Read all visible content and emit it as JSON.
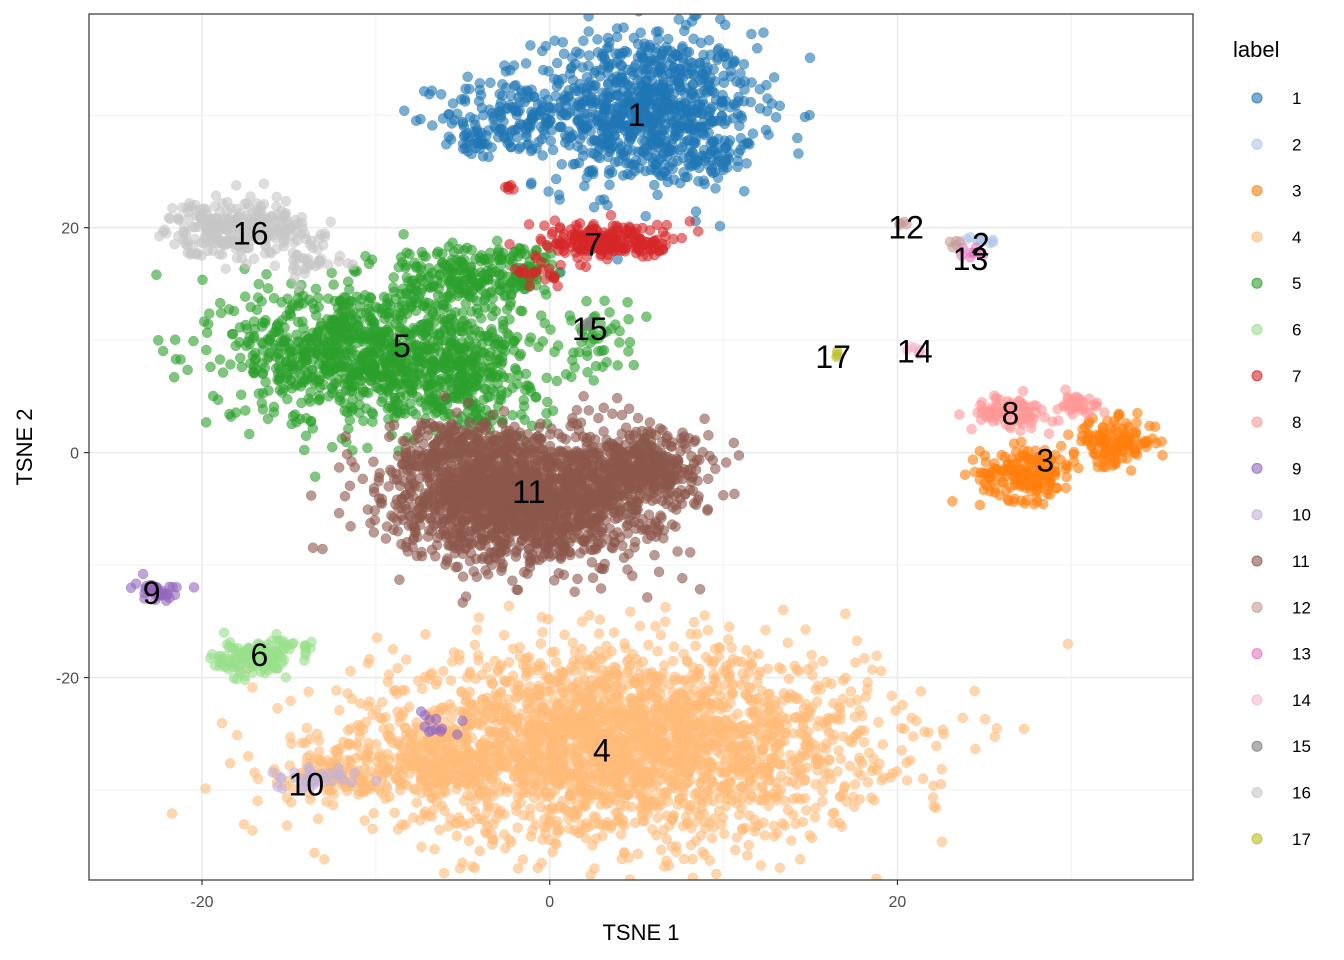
{
  "chart_data": {
    "type": "scatter",
    "title": "",
    "xlabel": "TSNE 1",
    "ylabel": "TSNE 2",
    "xlim": [
      -26.5,
      37
    ],
    "ylim": [
      -38,
      39
    ],
    "xticks": [
      -20,
      0,
      20
    ],
    "yticks": [
      -20,
      0,
      20
    ],
    "grid": true,
    "legend": {
      "title": "label",
      "position": "right"
    },
    "clusters": [
      {
        "label": "1",
        "color": "#1f77b4",
        "label_pos": [
          5,
          30
        ],
        "blobs": [
          [
            5.5,
            30.5,
            4.2,
            4.6,
            900
          ],
          [
            -2.5,
            30,
            2.5,
            2.2,
            120
          ],
          [
            -4.5,
            27.5,
            1.2,
            1.0,
            30
          ],
          [
            9.5,
            26.5,
            1.5,
            1.2,
            40
          ]
        ]
      },
      {
        "label": "2",
        "color": "#aec7e8",
        "label_pos": [
          24.8,
          18.5
        ],
        "blobs": [
          [
            24.8,
            18.8,
            0.7,
            0.3,
            10
          ]
        ]
      },
      {
        "label": "3",
        "color": "#ff7f0e",
        "label_pos": [
          28.5,
          -0.7
        ],
        "blobs": [
          [
            27.5,
            -1.8,
            1.8,
            1.6,
            180
          ],
          [
            32.5,
            1.0,
            1.6,
            1.3,
            130
          ]
        ]
      },
      {
        "label": "4",
        "color": "#ffbb78",
        "label_pos": [
          3,
          -26.5
        ],
        "blobs": [
          [
            4,
            -26,
            9.5,
            5.5,
            2600
          ],
          [
            -8,
            -28,
            4.5,
            2.0,
            250
          ],
          [
            -13,
            -29,
            1.5,
            0.7,
            30
          ]
        ]
      },
      {
        "label": "5",
        "color": "#2ca02c",
        "label_pos": [
          -8.5,
          9.5
        ],
        "blobs": [
          [
            -11,
            9,
            4.8,
            4.2,
            900
          ],
          [
            -5,
            7,
            3.0,
            3.5,
            300
          ],
          [
            -5,
            15.5,
            3.0,
            2.2,
            200
          ],
          [
            -1.5,
            16,
            1.5,
            1.4,
            60
          ],
          [
            2.5,
            10,
            2.0,
            2.5,
            50
          ]
        ]
      },
      {
        "label": "6",
        "color": "#98df8a",
        "label_pos": [
          -16.7,
          -18
        ],
        "blobs": [
          [
            -17.2,
            -18.3,
            1.4,
            1.2,
            120
          ],
          [
            -14.5,
            -17.5,
            0.9,
            0.6,
            15
          ]
        ]
      },
      {
        "label": "7",
        "color": "#d62728",
        "label_pos": [
          2.5,
          18.5
        ],
        "blobs": [
          [
            3.5,
            18.8,
            2.6,
            1.1,
            220
          ],
          [
            -0.5,
            15.8,
            1.0,
            0.6,
            20
          ],
          [
            -2.3,
            23.5,
            0.3,
            0.2,
            6
          ]
        ]
      },
      {
        "label": "8",
        "color": "#ff9896",
        "label_pos": [
          26.5,
          3.5
        ],
        "blobs": [
          [
            26.5,
            3.5,
            1.5,
            1.0,
            90
          ],
          [
            30.3,
            4.3,
            1.0,
            0.6,
            30
          ]
        ]
      },
      {
        "label": "9",
        "color": "#9467bd",
        "label_pos": [
          -22.9,
          -12.5
        ],
        "blobs": [
          [
            -22.6,
            -12.3,
            0.9,
            0.6,
            35
          ],
          [
            -6.5,
            -23.8,
            0.6,
            0.8,
            12
          ]
        ]
      },
      {
        "label": "10",
        "color": "#c5b0d5",
        "label_pos": [
          -14,
          -29.5
        ],
        "blobs": [
          [
            -13.5,
            -29,
            1.5,
            0.7,
            35
          ]
        ]
      },
      {
        "label": "11",
        "color": "#8c564b",
        "label_pos": [
          -1.2,
          -3.5
        ],
        "blobs": [
          [
            -1.5,
            -4,
            5.0,
            3.8,
            1800
          ],
          [
            5.8,
            -1.5,
            2.2,
            2.2,
            300
          ],
          [
            -5.5,
            0.5,
            2.0,
            1.5,
            120
          ]
        ]
      },
      {
        "label": "12",
        "color": "#c49c94",
        "label_pos": [
          20.5,
          20
        ],
        "blobs": [
          [
            20.4,
            20.3,
            0.3,
            0.3,
            4
          ],
          [
            23.2,
            18.5,
            0.4,
            0.4,
            5
          ]
        ]
      },
      {
        "label": "13",
        "color": "#e377c2",
        "label_pos": [
          24.2,
          17.2
        ],
        "blobs": [
          [
            24.2,
            17.8,
            0.5,
            0.4,
            8
          ]
        ]
      },
      {
        "label": "14",
        "color": "#f7b6d2",
        "label_pos": [
          21,
          9
        ],
        "blobs": [
          [
            21,
            9.2,
            0.5,
            0.3,
            8
          ]
        ]
      },
      {
        "label": "15",
        "color": "#7f7f7f",
        "label_pos": [
          2.3,
          11
        ],
        "blobs": [
          [
            2.3,
            11.5,
            0.2,
            0.2,
            3
          ]
        ]
      },
      {
        "label": "16",
        "color": "#c7c7c7",
        "label_pos": [
          -17.2,
          19.5
        ],
        "blobs": [
          [
            -18,
            20,
            2.6,
            1.6,
            300
          ],
          [
            -13.5,
            17,
            1.5,
            1.5,
            40
          ]
        ]
      },
      {
        "label": "17",
        "color": "#bcbd22",
        "label_pos": [
          16.3,
          8.5
        ],
        "blobs": [
          [
            16.5,
            8.8,
            0.2,
            0.2,
            3
          ]
        ]
      }
    ]
  }
}
